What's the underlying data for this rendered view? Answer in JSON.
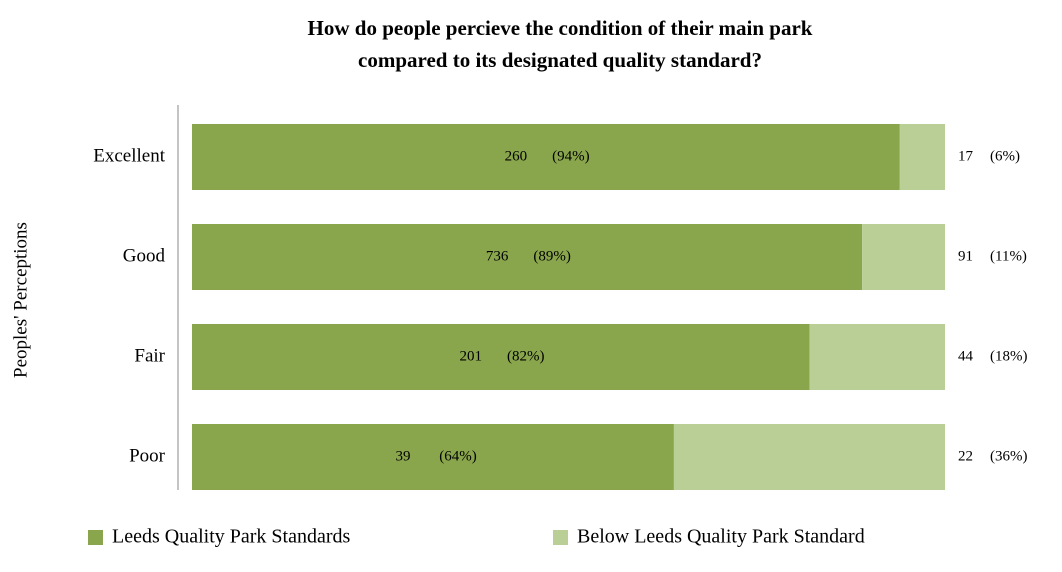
{
  "chart_data": {
    "type": "stacked-bar-horizontal",
    "title": [
      "How do people percieve the condition of their main park",
      "compared to its designated quality standard?"
    ],
    "y_label": "Peoples' Perceptions",
    "categories": [
      "Excellent",
      "Good",
      "Fair",
      "Poor"
    ],
    "series": [
      {
        "name": "Leeds Quality Park Standards",
        "color": "#8aa64c",
        "values": [
          94,
          89,
          82,
          64
        ],
        "value_labels": [
          "(94%)",
          "(89%)",
          "(82%)",
          "(64%)"
        ],
        "counts": [
          260,
          736,
          201,
          39
        ]
      },
      {
        "name": "Below Leeds Quality Park Standard",
        "color": "#b9cf96",
        "values": [
          6,
          11,
          18,
          36
        ],
        "value_labels": [
          "(6%)",
          "(11%)",
          "(18%)",
          "(36%)"
        ],
        "counts": [
          17,
          91,
          44,
          22
        ]
      }
    ],
    "legend": "bottom"
  }
}
